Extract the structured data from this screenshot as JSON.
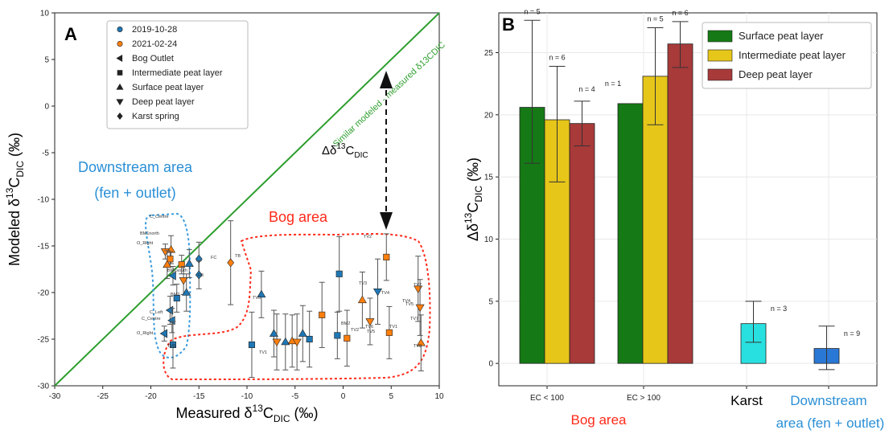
{
  "chart_data": [
    {
      "panel": "A",
      "type": "scatter",
      "panel_label": "A",
      "xlabel_main": "Measured δ",
      "xlabel_sup": "13",
      "xlabel_sub": "C",
      "xlabel_sub2": "DIC",
      "xlabel_unit": " (‰)",
      "ylabel_main": "Modeled δ",
      "ylabel_sup": "13",
      "ylabel_sub": "C",
      "ylabel_sub2": "DIC",
      "ylabel_unit": " (‰)",
      "xlim": [
        -30,
        10
      ],
      "ylim": [
        -30,
        10
      ],
      "xticks": [
        "-30",
        "-25",
        "-20",
        "-15",
        "-10",
        "-5",
        "0",
        "5",
        "10"
      ],
      "yticks": [
        "-30",
        "-25",
        "-20",
        "-15",
        "-10",
        "-5",
        "0",
        "5",
        "10"
      ],
      "identity_line_label": "Similar modeled - measured δ13CDIC",
      "delta_label": "Δδ13CDIC",
      "legend": [
        {
          "marker": "circle",
          "color": "#1f77b4",
          "label": "2019-10-28"
        },
        {
          "marker": "circle",
          "color": "#ff7f0e",
          "label": "2021-02-24"
        },
        {
          "marker": "triangle-left",
          "color": "#222222",
          "label": "Bog Outlet"
        },
        {
          "marker": "square",
          "color": "#222222",
          "label": "Intermediate peat layer"
        },
        {
          "marker": "triangle-up",
          "color": "#222222",
          "label": "Surface peat layer"
        },
        {
          "marker": "triangle-down",
          "color": "#222222",
          "label": "Deep peat layer"
        },
        {
          "marker": "diamond",
          "color": "#222222",
          "label": "Karst spring"
        }
      ],
      "downstream_label_1": "Downstream area",
      "downstream_label_2": "(fen + outlet)",
      "bog_label": "Bog area",
      "point_labels": [
        "BM1north",
        "C_Centre",
        "O_Right",
        "FC",
        "FB",
        "TB",
        "BM1south",
        "BM2",
        "C_Left",
        "C_Centre",
        "O_Right",
        "TV8",
        "TV5",
        "TV3",
        "TV2",
        "TV1",
        "TV4",
        "TV7",
        "BM2",
        "TV2",
        "TV5",
        "TV1",
        "TV5",
        "TV4",
        "TV6",
        "TV7",
        "TV8"
      ],
      "points": [
        {
          "x": -18.5,
          "y": -15.6,
          "err": 0.8,
          "marker": "triangle-down",
          "color": "#ff7f0e"
        },
        {
          "x": -17.9,
          "y": -15.4,
          "err": 1.5,
          "marker": "triangle-up",
          "color": "#ff7f0e"
        },
        {
          "x": -18.0,
          "y": -16.4,
          "err": 0.8,
          "marker": "square",
          "color": "#ff7f0e"
        },
        {
          "x": -18.3,
          "y": -17.0,
          "err": 1.5,
          "marker": "triangle-up",
          "color": "#ff7f0e"
        },
        {
          "x": -17.7,
          "y": -18.2,
          "err": 1.0,
          "marker": "triangle-left",
          "color": "#1f77b4"
        },
        {
          "x": -16.8,
          "y": -17.0,
          "err": 1.0,
          "marker": "square",
          "color": "#ff7f0e"
        },
        {
          "x": -16.0,
          "y": -16.9,
          "err": 1.5,
          "marker": "triangle-up",
          "color": "#1f77b4"
        },
        {
          "x": -16.6,
          "y": -18.7,
          "err": 1.5,
          "marker": "triangle-down",
          "color": "#ff7f0e"
        },
        {
          "x": -15.0,
          "y": -16.4,
          "err": 1.8,
          "marker": "diamond",
          "color": "#1f77b4"
        },
        {
          "x": -15.0,
          "y": -18.1,
          "err": 1.5,
          "marker": "diamond",
          "color": "#1f77b4"
        },
        {
          "x": -11.7,
          "y": -16.8,
          "err": 4.5,
          "marker": "diamond",
          "color": "#ff7f0e"
        },
        {
          "x": -17.3,
          "y": -20.6,
          "err": 1.5,
          "marker": "square",
          "color": "#1f77b4"
        },
        {
          "x": -16.3,
          "y": -20.0,
          "err": 2.0,
          "marker": "triangle-up",
          "color": "#1f77b4"
        },
        {
          "x": -18.0,
          "y": -21.9,
          "err": 1.5,
          "marker": "triangle-left",
          "color": "#1f77b4"
        },
        {
          "x": -17.8,
          "y": -23.0,
          "err": 1.3,
          "marker": "triangle-left",
          "color": "#1f77b4"
        },
        {
          "x": -18.6,
          "y": -24.4,
          "err": 0.8,
          "marker": "triangle-left",
          "color": "#1f77b4"
        },
        {
          "x": -17.7,
          "y": -25.6,
          "err": 2.5,
          "marker": "square",
          "color": "#1f77b4"
        },
        {
          "x": -9.5,
          "y": -25.6,
          "err": 3.5,
          "marker": "square",
          "color": "#1f77b4"
        },
        {
          "x": -8.5,
          "y": -20.2,
          "err": 2.5,
          "marker": "triangle-up",
          "color": "#1f77b4"
        },
        {
          "x": -7.2,
          "y": -24.4,
          "err": 2.5,
          "marker": "triangle-up",
          "color": "#1f77b4"
        },
        {
          "x": -6.9,
          "y": -25.3,
          "err": 3.0,
          "marker": "triangle-down",
          "color": "#ff7f0e"
        },
        {
          "x": -6.0,
          "y": -25.3,
          "err": 3.0,
          "marker": "triangle-up",
          "color": "#1f77b4"
        },
        {
          "x": -5.3,
          "y": -25.2,
          "err": 2.8,
          "marker": "triangle-up",
          "color": "#ff7f0e"
        },
        {
          "x": -4.8,
          "y": -25.3,
          "err": 3.0,
          "marker": "triangle-down",
          "color": "#ff7f0e"
        },
        {
          "x": -4.2,
          "y": -24.4,
          "err": 3.0,
          "marker": "triangle-up",
          "color": "#1f77b4"
        },
        {
          "x": -3.5,
          "y": -25.0,
          "err": 3.0,
          "marker": "square",
          "color": "#1f77b4"
        },
        {
          "x": -2.2,
          "y": -22.4,
          "err": 3.5,
          "marker": "square",
          "color": "#ff7f0e"
        },
        {
          "x": -0.4,
          "y": -18.0,
          "err": 4.0,
          "marker": "square",
          "color": "#1f77b4"
        },
        {
          "x": -0.6,
          "y": -24.6,
          "err": 2.5,
          "marker": "square",
          "color": "#1f77b4"
        },
        {
          "x": 0.4,
          "y": -24.9,
          "err": 3.0,
          "marker": "square",
          "color": "#ff7f0e"
        },
        {
          "x": 2.0,
          "y": -20.8,
          "err": 3.0,
          "marker": "triangle-up",
          "color": "#ff7f0e"
        },
        {
          "x": 2.8,
          "y": -23.1,
          "err": 2.5,
          "marker": "triangle-down",
          "color": "#ff7f0e"
        },
        {
          "x": 3.6,
          "y": -19.9,
          "err": 3.5,
          "marker": "triangle-down",
          "color": "#1f77b4"
        },
        {
          "x": 4.5,
          "y": -16.2,
          "err": 2.5,
          "marker": "square",
          "color": "#ff7f0e"
        },
        {
          "x": 4.8,
          "y": -24.3,
          "err": 2.8,
          "marker": "square",
          "color": "#ff7f0e"
        },
        {
          "x": 7.8,
          "y": -19.6,
          "err": 3.5,
          "marker": "triangle-down",
          "color": "#ff7f0e"
        },
        {
          "x": 8.0,
          "y": -21.6,
          "err": 3.0,
          "marker": "triangle-down",
          "color": "#ff7f0e"
        },
        {
          "x": 8.1,
          "y": -25.4,
          "err": 3.0,
          "marker": "triangle-up",
          "color": "#ff7f0e"
        }
      ]
    },
    {
      "panel": "B",
      "type": "bar",
      "panel_label": "B",
      "ylabel_main": "Δδ",
      "ylabel_sup": "13",
      "ylabel_sub": "C",
      "ylabel_sub2": "DIC",
      "ylabel_unit": " (‰)",
      "ylim": [
        -1.8,
        28.2
      ],
      "yticks": [
        "0",
        "5",
        "10",
        "15",
        "20",
        "25"
      ],
      "xtick_labels": [
        "EC < 100",
        "EC > 100"
      ],
      "category_labels": {
        "bog": "Bog area",
        "karst": "Karst",
        "downstream_1": "Downstream",
        "downstream_2": "area (fen + outlet)"
      },
      "legend": [
        {
          "label": "Surface peat layer",
          "color": "#157a15"
        },
        {
          "label": "Intermediate peat layer",
          "color": "#e6c619"
        },
        {
          "label": "Deep peat layer",
          "color": "#a83a3a"
        }
      ],
      "groups": [
        {
          "category": "EC < 100",
          "bars": [
            {
              "series": "Surface peat layer",
              "value": 20.6,
              "err_low": 4.5,
              "err_high": 7.0,
              "n_label": "n = 5"
            },
            {
              "series": "Intermediate peat layer",
              "value": 19.6,
              "err_low": 5.0,
              "err_high": 4.3,
              "n_label": "n = 6"
            },
            {
              "series": "Deep peat layer",
              "value": 19.3,
              "err_low": 1.8,
              "err_high": 1.8,
              "n_label": "n = 4"
            }
          ]
        },
        {
          "category": "EC > 100",
          "bars": [
            {
              "series": "Surface peat layer",
              "value": 20.9,
              "err_low": 0,
              "err_high": 0,
              "n_label": "n = 1"
            },
            {
              "series": "Intermediate peat layer",
              "value": 23.1,
              "err_low": 3.9,
              "err_high": 3.9,
              "n_label": "n = 5"
            },
            {
              "series": "Deep peat layer",
              "value": 25.7,
              "err_low": 1.9,
              "err_high": 1.8,
              "n_label": "n = 6"
            }
          ]
        }
      ],
      "extra_bars": [
        {
          "category": "Karst",
          "value": 3.2,
          "err_low": 1.5,
          "err_high": 1.8,
          "color": "#29e0e0",
          "n_label": "n = 3"
        },
        {
          "category": "Downstream area (fen + outlet)",
          "value": 1.2,
          "err_low": 1.7,
          "err_high": 1.8,
          "color": "#2a78d6",
          "n_label": "n = 9"
        }
      ]
    }
  ]
}
